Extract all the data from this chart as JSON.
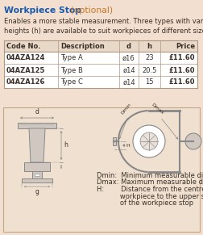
{
  "title_bold": "Workpiece Stop",
  "title_optional": " (optional)",
  "subtitle": "Enables a more stable measurement. Three types with various\nheights (h) are available to suit workpieces of different sizes.",
  "table_headers": [
    "Code No.",
    "Description",
    "d",
    "h",
    "Price"
  ],
  "table_rows": [
    [
      "04AZA124",
      "Type A",
      "ø16",
      "23",
      "£11.60"
    ],
    [
      "04AZA125",
      "Type B",
      "ø14",
      "20.5",
      "£11.60"
    ],
    [
      "04AZA126",
      "Type C",
      "ø14",
      "15",
      "£11.60"
    ]
  ],
  "legend_line1": "Dmin:  Minimum measurable diameter",
  "legend_line2": "Dmax: Maximum measurable diameter",
  "legend_line3a": "H:        Distance from the centre of the",
  "legend_line3b": "           workpiece to the upper surface",
  "legend_line3c": "           of the workpiece stop",
  "bg_color": "#f2dfd0",
  "title_color": "#1a5aaa",
  "optional_color": "#c87828",
  "text_color": "#3a3028",
  "table_border_color": "#b09880",
  "header_bg": "#e8d8c8",
  "row_bg_white": "#ffffff",
  "row_bg_alt": "#f8ede0",
  "diagram_bg": "#f0e0d0",
  "diagram_border": "#c0a888",
  "draw_gray": "#888888",
  "draw_light": "#d0c8c0",
  "draw_mid": "#b0a898"
}
